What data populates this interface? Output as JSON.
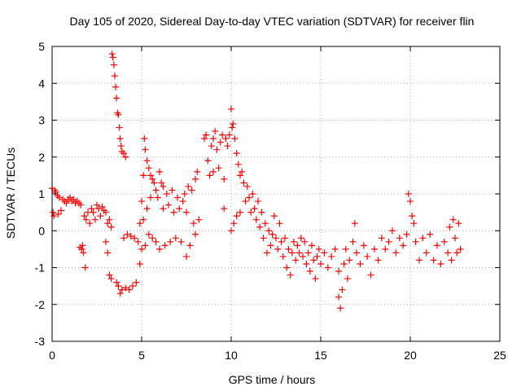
{
  "chart_data": {
    "type": "scatter",
    "title": "Day 105 of 2020, Sidereal Day-to-day VTEC variation (SDTVAR) for receiver flin",
    "xlabel": "GPS time / hours",
    "ylabel": "SDTVAR / TECUs",
    "xlim": [
      0,
      25
    ],
    "ylim": [
      -3,
      5
    ],
    "xticks": [
      0,
      5,
      10,
      15,
      20,
      25
    ],
    "xtick_labels": [
      "0",
      "5",
      "10",
      "15",
      "20",
      "25"
    ],
    "yticks": [
      -3,
      -2,
      -1,
      0,
      1,
      2,
      3,
      4,
      5
    ],
    "ytick_labels": [
      "-3",
      "-2",
      "-1",
      "0",
      "1",
      "2",
      "3",
      "4",
      "5"
    ],
    "grid": true,
    "marker": "+",
    "color": "#ff0000",
    "series": [
      {
        "name": "SDTVAR",
        "points": [
          [
            0.0,
            1.15
          ],
          [
            0.05,
            0.5
          ],
          [
            0.1,
            0.4
          ],
          [
            0.15,
            1.1
          ],
          [
            0.2,
            1.05
          ],
          [
            0.3,
            0.95
          ],
          [
            0.35,
            0.45
          ],
          [
            0.4,
            0.9
          ],
          [
            0.5,
            0.55
          ],
          [
            0.6,
            0.85
          ],
          [
            0.7,
            0.8
          ],
          [
            0.8,
            0.75
          ],
          [
            0.9,
            0.85
          ],
          [
            1.0,
            0.9
          ],
          [
            1.1,
            0.8
          ],
          [
            1.2,
            0.85
          ],
          [
            1.3,
            0.75
          ],
          [
            1.4,
            0.8
          ],
          [
            1.5,
            0.75
          ],
          [
            1.55,
            -0.45
          ],
          [
            1.6,
            0.7
          ],
          [
            1.65,
            -0.5
          ],
          [
            1.7,
            -0.4
          ],
          [
            1.75,
            -0.6
          ],
          [
            1.8,
            0.4
          ],
          [
            1.85,
            -1.0
          ],
          [
            1.9,
            0.3
          ],
          [
            2.0,
            0.5
          ],
          [
            2.1,
            0.2
          ],
          [
            2.2,
            0.6
          ],
          [
            2.3,
            0.5
          ],
          [
            2.4,
            0.3
          ],
          [
            2.5,
            0.7
          ],
          [
            2.6,
            0.6
          ],
          [
            2.7,
            0.4
          ],
          [
            2.8,
            0.65
          ],
          [
            2.9,
            0.55
          ],
          [
            3.0,
            0.5
          ],
          [
            3.0,
            -0.3
          ],
          [
            3.1,
            0.2
          ],
          [
            3.1,
            -0.6
          ],
          [
            3.2,
            0.3
          ],
          [
            3.2,
            -1.2
          ],
          [
            3.3,
            0.1
          ],
          [
            3.3,
            -1.3
          ],
          [
            3.35,
            4.8
          ],
          [
            3.4,
            4.7
          ],
          [
            3.45,
            4.5
          ],
          [
            3.5,
            4.2
          ],
          [
            3.55,
            3.9
          ],
          [
            3.6,
            3.6
          ],
          [
            3.6,
            -1.4
          ],
          [
            3.65,
            3.2
          ],
          [
            3.7,
            3.15
          ],
          [
            3.7,
            -1.5
          ],
          [
            3.75,
            2.8
          ],
          [
            3.8,
            2.5
          ],
          [
            3.8,
            -1.7
          ],
          [
            3.85,
            2.3
          ],
          [
            3.9,
            2.15
          ],
          [
            3.9,
            -1.6
          ],
          [
            4.0,
            2.1
          ],
          [
            4.0,
            -0.2
          ],
          [
            4.1,
            2.0
          ],
          [
            4.1,
            -1.55
          ],
          [
            4.2,
            -0.1
          ],
          [
            4.3,
            -1.6
          ],
          [
            4.4,
            -0.15
          ],
          [
            4.5,
            -1.5
          ],
          [
            4.6,
            -0.2
          ],
          [
            4.7,
            -1.4
          ],
          [
            4.8,
            -0.3
          ],
          [
            4.9,
            0.2
          ],
          [
            4.9,
            -0.9
          ],
          [
            5.0,
            0.8
          ],
          [
            5.0,
            -0.5
          ],
          [
            5.1,
            1.5
          ],
          [
            5.1,
            0.3
          ],
          [
            5.15,
            2.5
          ],
          [
            5.2,
            2.2
          ],
          [
            5.2,
            -0.4
          ],
          [
            5.3,
            1.9
          ],
          [
            5.3,
            0.6
          ],
          [
            5.4,
            1.7
          ],
          [
            5.4,
            -0.1
          ],
          [
            5.5,
            1.5
          ],
          [
            5.5,
            0.9
          ],
          [
            5.6,
            1.4
          ],
          [
            5.6,
            -0.2
          ],
          [
            5.7,
            1.3
          ],
          [
            5.8,
            1.1
          ],
          [
            5.8,
            -0.3
          ],
          [
            5.9,
            0.9
          ],
          [
            6.0,
            1.6
          ],
          [
            6.0,
            -0.5
          ],
          [
            6.1,
            1.3
          ],
          [
            6.2,
            1.2
          ],
          [
            6.2,
            0.6
          ],
          [
            6.3,
            -0.4
          ],
          [
            6.4,
            1.0
          ],
          [
            6.5,
            0.7
          ],
          [
            6.6,
            -0.3
          ],
          [
            6.7,
            1.1
          ],
          [
            6.8,
            0.5
          ],
          [
            6.9,
            -0.2
          ],
          [
            7.0,
            0.9
          ],
          [
            7.1,
            0.6
          ],
          [
            7.2,
            -0.3
          ],
          [
            7.3,
            0.8
          ],
          [
            7.4,
            1.0
          ],
          [
            7.5,
            0.5
          ],
          [
            7.5,
            -0.7
          ],
          [
            7.6,
            1.2
          ],
          [
            7.7,
            -0.4
          ],
          [
            7.8,
            1.1
          ],
          [
            7.9,
            0.2
          ],
          [
            8.0,
            1.4
          ],
          [
            8.0,
            -0.1
          ],
          [
            8.1,
            1.6
          ],
          [
            8.2,
            0.3
          ],
          [
            8.5,
            2.5
          ],
          [
            8.6,
            2.6
          ],
          [
            8.7,
            1.9
          ],
          [
            8.8,
            1.5
          ],
          [
            8.9,
            2.3
          ],
          [
            9.0,
            2.5
          ],
          [
            9.0,
            1.6
          ],
          [
            9.1,
            2.7
          ],
          [
            9.2,
            2.2
          ],
          [
            9.3,
            1.7
          ],
          [
            9.4,
            2.4
          ],
          [
            9.5,
            2.6
          ],
          [
            9.6,
            1.4
          ],
          [
            9.6,
            0.6
          ],
          [
            9.7,
            2.5
          ],
          [
            9.8,
            2.3
          ],
          [
            9.9,
            2.6
          ],
          [
            10.0,
            3.3
          ],
          [
            10.0,
            0.0
          ],
          [
            10.05,
            2.8
          ],
          [
            10.1,
            2.9
          ],
          [
            10.15,
            0.2
          ],
          [
            10.2,
            2.5
          ],
          [
            10.3,
            2.1
          ],
          [
            10.3,
            0.4
          ],
          [
            10.4,
            1.8
          ],
          [
            10.5,
            1.5
          ],
          [
            10.5,
            0.5
          ],
          [
            10.6,
            1.6
          ],
          [
            10.7,
            1.3
          ],
          [
            10.8,
            0.8
          ],
          [
            10.9,
            1.2
          ],
          [
            11.0,
            0.9
          ],
          [
            11.1,
            0.5
          ],
          [
            11.2,
            1.0
          ],
          [
            11.3,
            0.6
          ],
          [
            11.4,
            0.3
          ],
          [
            11.5,
            0.8
          ],
          [
            11.6,
            0.1
          ],
          [
            11.7,
            0.5
          ],
          [
            11.8,
            -0.2
          ],
          [
            11.9,
            0.2
          ],
          [
            12.0,
            -0.6
          ],
          [
            12.1,
            0.0
          ],
          [
            12.2,
            -0.4
          ],
          [
            12.3,
            -0.1
          ],
          [
            12.4,
            0.4
          ],
          [
            12.5,
            -0.2
          ],
          [
            12.6,
            -0.5
          ],
          [
            12.7,
            0.2
          ],
          [
            12.8,
            -0.3
          ],
          [
            12.9,
            -0.7
          ],
          [
            13.0,
            -0.2
          ],
          [
            13.1,
            -1.0
          ],
          [
            13.2,
            -0.5
          ],
          [
            13.3,
            -1.2
          ],
          [
            13.4,
            -0.6
          ],
          [
            13.5,
            -0.3
          ],
          [
            13.6,
            -0.8
          ],
          [
            13.7,
            -0.4
          ],
          [
            13.8,
            -0.6
          ],
          [
            13.9,
            -0.2
          ],
          [
            14.0,
            -0.7
          ],
          [
            14.1,
            -0.3
          ],
          [
            14.2,
            -0.9
          ],
          [
            14.3,
            -0.6
          ],
          [
            14.4,
            -1.1
          ],
          [
            14.5,
            -0.4
          ],
          [
            14.6,
            -0.8
          ],
          [
            14.7,
            -1.3
          ],
          [
            14.8,
            -0.7
          ],
          [
            14.9,
            -0.5
          ],
          [
            15.0,
            -0.9
          ],
          [
            15.2,
            -0.6
          ],
          [
            15.4,
            -1.0
          ],
          [
            15.6,
            -0.7
          ],
          [
            15.8,
            -0.5
          ],
          [
            16.0,
            -1.1
          ],
          [
            16.0,
            -1.8
          ],
          [
            16.1,
            -2.1
          ],
          [
            16.2,
            -1.6
          ],
          [
            16.3,
            -0.9
          ],
          [
            16.4,
            -0.5
          ],
          [
            16.5,
            -1.3
          ],
          [
            16.6,
            -0.8
          ],
          [
            16.8,
            -0.3
          ],
          [
            16.9,
            0.2
          ],
          [
            17.0,
            -0.6
          ],
          [
            17.2,
            -0.9
          ],
          [
            17.4,
            -0.4
          ],
          [
            17.6,
            -0.7
          ],
          [
            17.8,
            -1.2
          ],
          [
            18.0,
            -0.5
          ],
          [
            18.2,
            -0.8
          ],
          [
            18.4,
            -0.2
          ],
          [
            18.6,
            -0.5
          ],
          [
            18.8,
            -0.3
          ],
          [
            19.0,
            0.0
          ],
          [
            19.2,
            -0.6
          ],
          [
            19.4,
            -0.2
          ],
          [
            19.6,
            -0.4
          ],
          [
            19.8,
            -0.1
          ],
          [
            19.9,
            1.0
          ],
          [
            20.0,
            0.8
          ],
          [
            20.1,
            0.4
          ],
          [
            20.2,
            0.2
          ],
          [
            20.3,
            -0.3
          ],
          [
            20.5,
            -0.8
          ],
          [
            20.7,
            -0.2
          ],
          [
            20.9,
            -0.6
          ],
          [
            21.1,
            -0.1
          ],
          [
            21.3,
            -0.8
          ],
          [
            21.5,
            -0.4
          ],
          [
            21.7,
            -0.9
          ],
          [
            21.9,
            -0.3
          ],
          [
            22.1,
            -0.6
          ],
          [
            22.2,
            0.1
          ],
          [
            22.3,
            -0.8
          ],
          [
            22.4,
            0.3
          ],
          [
            22.5,
            -0.2
          ],
          [
            22.6,
            -0.6
          ],
          [
            22.7,
            0.2
          ],
          [
            22.8,
            -0.5
          ]
        ]
      }
    ]
  }
}
